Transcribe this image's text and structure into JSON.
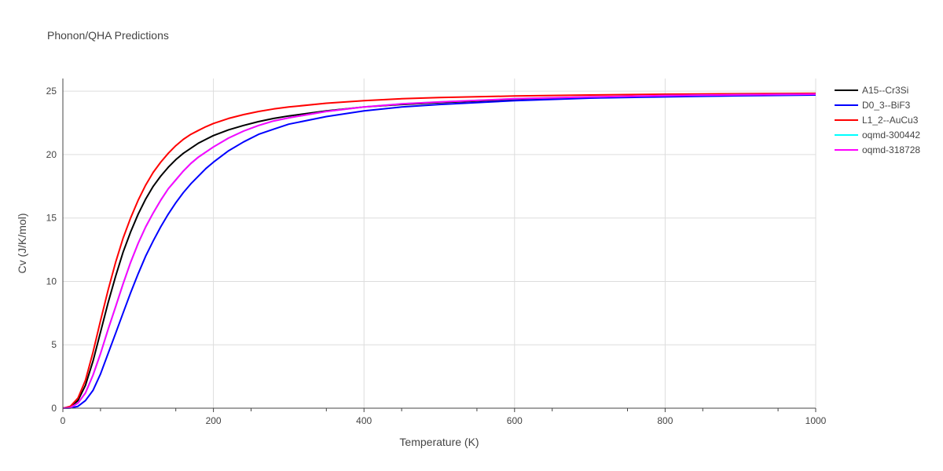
{
  "chart_data": {
    "type": "line",
    "title": "Phonon/QHA Predictions",
    "xlabel": "Temperature (K)",
    "ylabel": "Cv (J/K/mol)",
    "xlim": [
      0,
      1000
    ],
    "ylim": [
      0,
      26
    ],
    "x_ticks": [
      0,
      200,
      400,
      600,
      800,
      1000
    ],
    "y_ticks": [
      0,
      5,
      10,
      15,
      20,
      25
    ],
    "grid": true,
    "legend_position": "top-right",
    "x": [
      0,
      10,
      20,
      30,
      40,
      50,
      60,
      70,
      80,
      90,
      100,
      110,
      120,
      130,
      140,
      150,
      160,
      170,
      180,
      190,
      200,
      220,
      240,
      260,
      280,
      300,
      350,
      400,
      450,
      500,
      600,
      700,
      800,
      900,
      1000
    ],
    "series": [
      {
        "name": "A15--Cr3Si",
        "color": "#000000",
        "values": [
          0,
          0.1,
          0.6,
          1.8,
          3.7,
          6.0,
          8.3,
          10.4,
          12.3,
          13.9,
          15.3,
          16.5,
          17.5,
          18.3,
          19.0,
          19.6,
          20.1,
          20.5,
          20.9,
          21.2,
          21.5,
          21.95,
          22.3,
          22.6,
          22.85,
          23.05,
          23.45,
          23.75,
          23.95,
          24.1,
          24.35,
          24.5,
          24.6,
          24.68,
          24.73
        ]
      },
      {
        "name": "D0_3--BiF3",
        "color": "#0000ff",
        "values": [
          0,
          0.02,
          0.15,
          0.6,
          1.4,
          2.7,
          4.3,
          5.9,
          7.5,
          9.1,
          10.6,
          12.0,
          13.2,
          14.3,
          15.3,
          16.2,
          17.0,
          17.7,
          18.3,
          18.9,
          19.4,
          20.3,
          21.0,
          21.6,
          22.0,
          22.4,
          23.0,
          23.45,
          23.75,
          23.95,
          24.25,
          24.45,
          24.55,
          24.64,
          24.7
        ]
      },
      {
        "name": "L1_2--AuCu3",
        "color": "#ff0000",
        "values": [
          0,
          0.15,
          0.8,
          2.2,
          4.4,
          6.9,
          9.3,
          11.5,
          13.4,
          15.0,
          16.4,
          17.6,
          18.6,
          19.4,
          20.1,
          20.7,
          21.2,
          21.6,
          21.9,
          22.2,
          22.45,
          22.85,
          23.15,
          23.4,
          23.6,
          23.75,
          24.05,
          24.25,
          24.4,
          24.5,
          24.62,
          24.7,
          24.76,
          24.8,
          24.83
        ]
      },
      {
        "name": "oqmd-300442",
        "color": "#00ffff",
        "values": [
          0,
          0.05,
          0.4,
          1.2,
          2.6,
          4.3,
          6.2,
          8.0,
          9.8,
          11.5,
          13.0,
          14.3,
          15.4,
          16.4,
          17.3,
          18.0,
          18.7,
          19.3,
          19.8,
          20.2,
          20.6,
          21.3,
          21.85,
          22.3,
          22.65,
          22.9,
          23.4,
          23.75,
          24.0,
          24.15,
          24.4,
          24.55,
          24.65,
          24.72,
          24.77
        ]
      },
      {
        "name": "oqmd-318728",
        "color": "#ff00ff",
        "values": [
          0,
          0.05,
          0.4,
          1.2,
          2.6,
          4.3,
          6.2,
          8.0,
          9.8,
          11.5,
          13.0,
          14.3,
          15.4,
          16.4,
          17.3,
          18.0,
          18.7,
          19.3,
          19.8,
          20.2,
          20.6,
          21.3,
          21.85,
          22.3,
          22.65,
          22.9,
          23.4,
          23.75,
          24.0,
          24.15,
          24.4,
          24.55,
          24.65,
          24.72,
          24.77
        ]
      }
    ]
  }
}
